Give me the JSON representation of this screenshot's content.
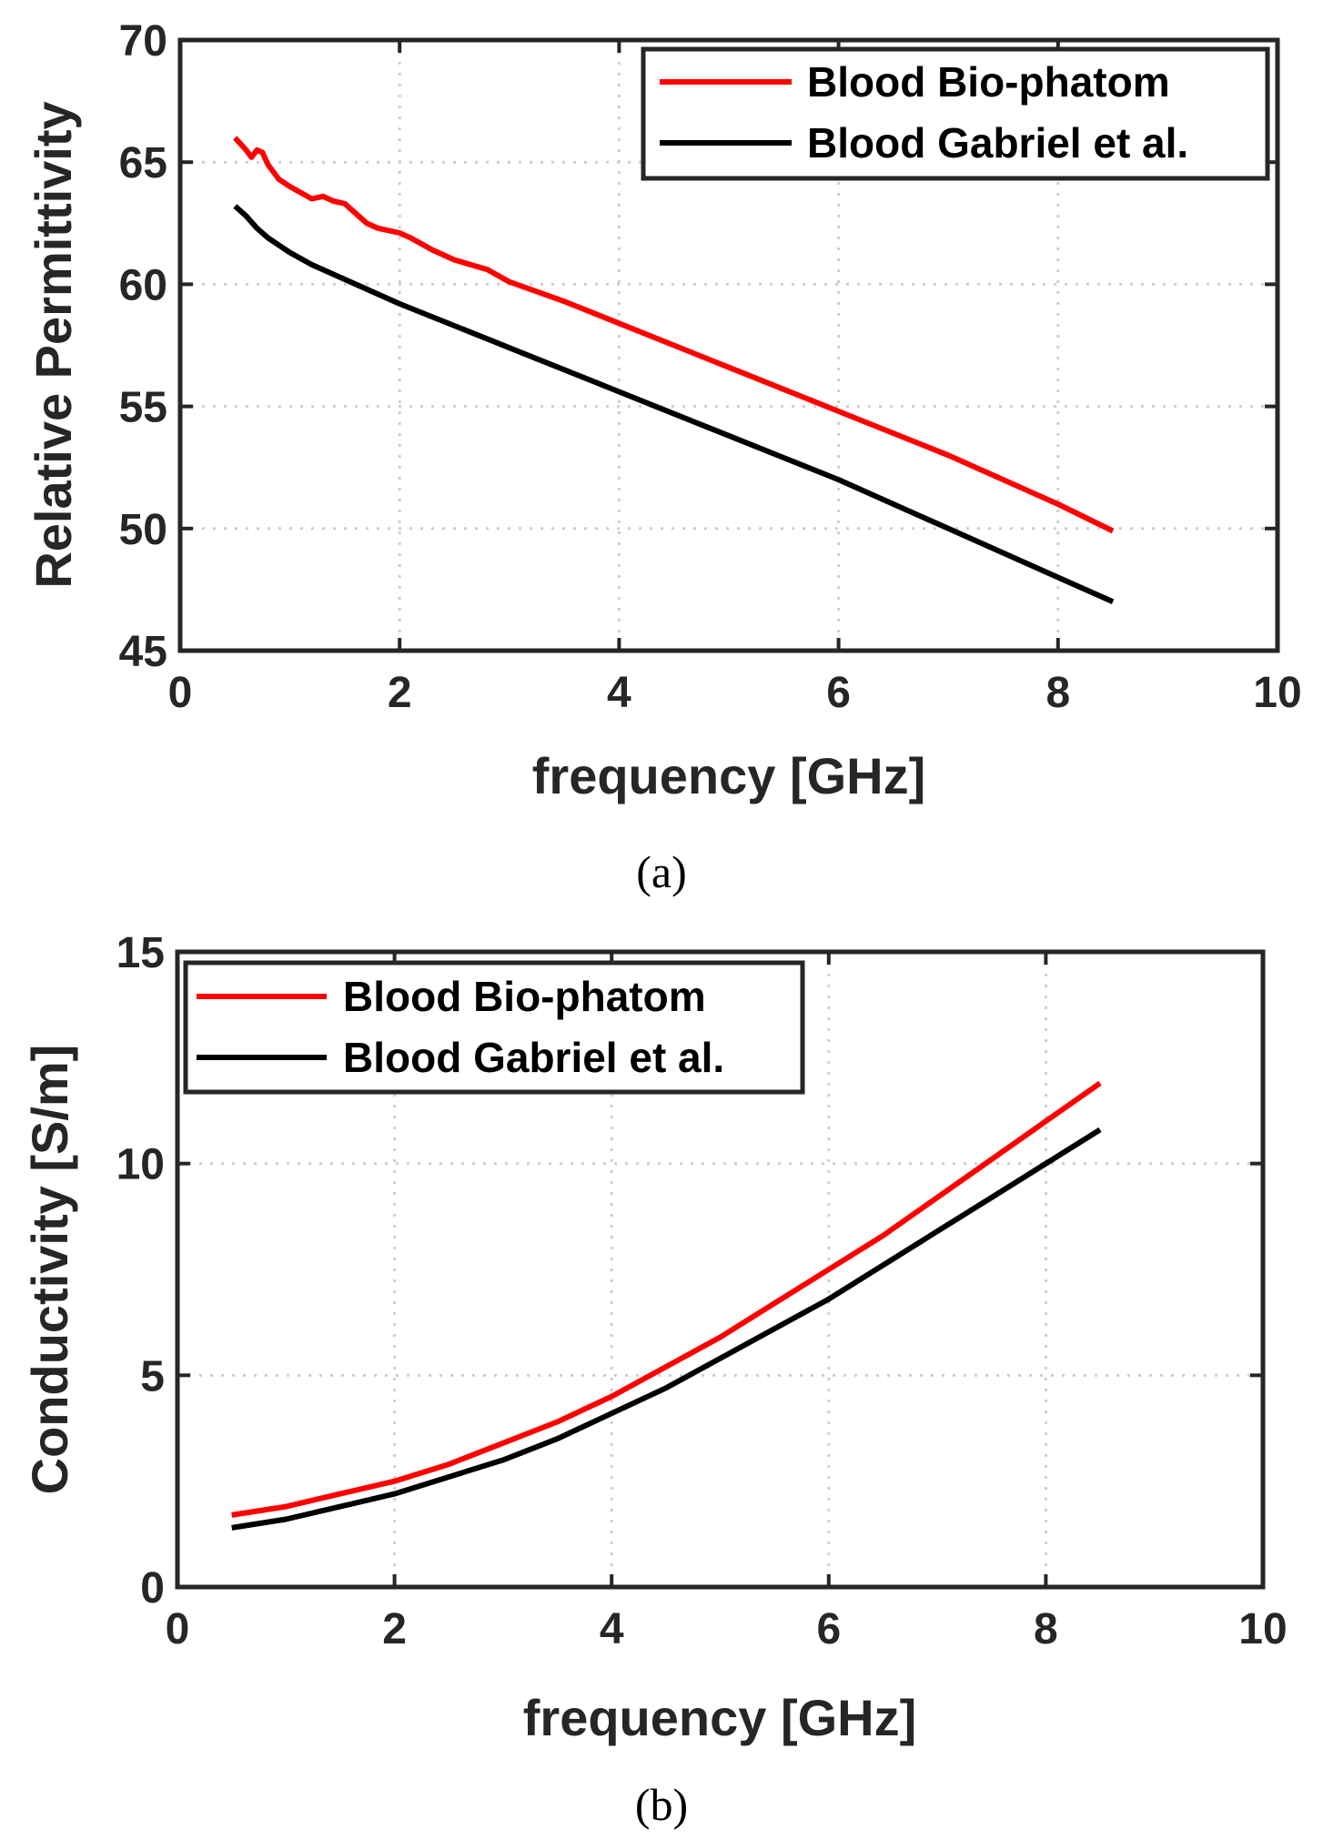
{
  "chart_data": [
    {
      "id": "a",
      "type": "line",
      "caption": "(a)",
      "xlabel": "frequency [GHz]",
      "ylabel": "Relative Permittivity",
      "xlim": [
        0,
        10
      ],
      "ylim": [
        45,
        70
      ],
      "xticks": [
        0,
        2,
        4,
        6,
        8,
        10
      ],
      "yticks": [
        45,
        50,
        55,
        60,
        65,
        70
      ],
      "xtick_labels": [
        "0",
        "2",
        "4",
        "6",
        "8",
        "10"
      ],
      "ytick_labels": [
        "45",
        "50",
        "55",
        "60",
        "65",
        "70"
      ],
      "grid": true,
      "legend_position": "top-right",
      "series": [
        {
          "name": "Blood Bio-phatom",
          "color": "#ff0000",
          "x": [
            0.5,
            0.6,
            0.65,
            0.7,
            0.75,
            0.8,
            0.9,
            1.0,
            1.2,
            1.3,
            1.4,
            1.5,
            1.7,
            1.8,
            2.0,
            2.1,
            2.3,
            2.5,
            2.8,
            3.0,
            3.5,
            4.0,
            4.5,
            5.0,
            5.5,
            6.0,
            6.5,
            7.0,
            7.5,
            8.0,
            8.5
          ],
          "y": [
            66.0,
            65.5,
            65.2,
            65.5,
            65.4,
            64.9,
            64.3,
            64.0,
            63.5,
            63.6,
            63.4,
            63.3,
            62.5,
            62.3,
            62.1,
            61.9,
            61.4,
            61.0,
            60.6,
            60.1,
            59.3,
            58.4,
            57.5,
            56.6,
            55.7,
            54.8,
            53.9,
            53.0,
            52.0,
            51.0,
            49.9
          ]
        },
        {
          "name": "Blood Gabriel et al.",
          "color": "#000000",
          "x": [
            0.5,
            0.6,
            0.7,
            0.8,
            1.0,
            1.2,
            1.5,
            2.0,
            2.5,
            3.0,
            3.5,
            4.0,
            4.5,
            5.0,
            5.5,
            6.0,
            6.5,
            7.0,
            7.5,
            8.0,
            8.5
          ],
          "y": [
            63.2,
            62.8,
            62.3,
            61.9,
            61.3,
            60.8,
            60.2,
            59.2,
            58.3,
            57.4,
            56.5,
            55.6,
            54.7,
            53.8,
            52.9,
            52.0,
            51.0,
            50.0,
            49.0,
            48.0,
            47.0
          ]
        }
      ]
    },
    {
      "id": "b",
      "type": "line",
      "caption": "(b)",
      "xlabel": "frequency [GHz]",
      "ylabel": "Conductivity [S/m]",
      "xlim": [
        0,
        10
      ],
      "ylim": [
        0,
        15
      ],
      "xticks": [
        0,
        2,
        4,
        6,
        8,
        10
      ],
      "yticks": [
        0,
        5,
        10,
        15
      ],
      "xtick_labels": [
        "0",
        "2",
        "4",
        "6",
        "8",
        "10"
      ],
      "ytick_labels": [
        "0",
        "5",
        "10",
        "15"
      ],
      "grid": true,
      "legend_position": "top-left",
      "series": [
        {
          "name": "Blood Bio-phatom",
          "color": "#ff0000",
          "x": [
            0.5,
            1.0,
            1.5,
            2.0,
            2.5,
            3.0,
            3.5,
            4.0,
            4.5,
            5.0,
            5.5,
            6.0,
            6.5,
            7.0,
            7.5,
            8.0,
            8.5
          ],
          "y": [
            1.7,
            1.9,
            2.2,
            2.5,
            2.9,
            3.4,
            3.9,
            4.5,
            5.2,
            5.9,
            6.7,
            7.5,
            8.3,
            9.2,
            10.1,
            11.0,
            11.9
          ]
        },
        {
          "name": "Blood Gabriel et al.",
          "color": "#000000",
          "x": [
            0.5,
            1.0,
            1.5,
            2.0,
            2.5,
            3.0,
            3.5,
            4.0,
            4.5,
            5.0,
            5.5,
            6.0,
            6.5,
            7.0,
            7.5,
            8.0,
            8.5
          ],
          "y": [
            1.4,
            1.6,
            1.9,
            2.2,
            2.6,
            3.0,
            3.5,
            4.1,
            4.7,
            5.4,
            6.1,
            6.8,
            7.6,
            8.4,
            9.2,
            10.0,
            10.8
          ]
        }
      ]
    }
  ]
}
